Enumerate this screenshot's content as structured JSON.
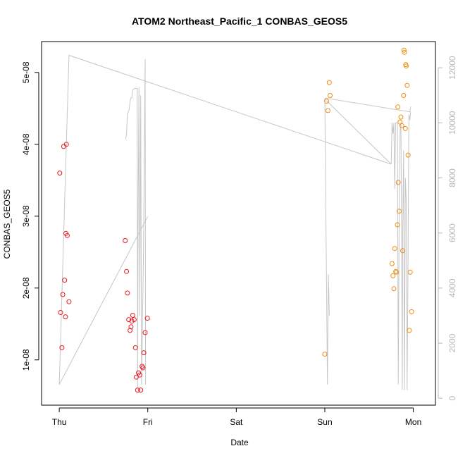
{
  "chart_data": {
    "type": "scatter",
    "title": "ATOM2 Northeast_Pacific_1 CONBAS_GEOS5",
    "xlabel": "Date",
    "ylabel": "CONBAS_GEOS5",
    "x_ticks": [
      {
        "label": "Thu",
        "value": 0
      },
      {
        "label": "Fri",
        "value": 1
      },
      {
        "label": "Sat",
        "value": 2
      },
      {
        "label": "Sun",
        "value": 3
      },
      {
        "label": "Mon",
        "value": 4
      }
    ],
    "y_ticks": [
      {
        "label": "1e-08",
        "value": 1e-08
      },
      {
        "label": "2e-08",
        "value": 2e-08
      },
      {
        "label": "3e-08",
        "value": 3e-08
      },
      {
        "label": "4e-08",
        "value": 4e-08
      },
      {
        "label": "5e-08",
        "value": 5e-08
      }
    ],
    "right_ticks": [
      {
        "label": "0",
        "value": 0
      },
      {
        "label": "2000",
        "value": 2000
      },
      {
        "label": "4000",
        "value": 4000
      },
      {
        "label": "6000",
        "value": 6000
      },
      {
        "label": "8000",
        "value": 8000
      },
      {
        "label": "10000",
        "value": 10000
      },
      {
        "label": "12000",
        "value": 12000
      }
    ],
    "xlim": [
      -0.2,
      4.25
    ],
    "ylim": [
      3.7e-09,
      5.43e-08
    ],
    "right_ylim": [
      -250,
      12950
    ],
    "colors": {
      "series1": "#e8191f",
      "series2": "#f08d12",
      "line": "#c6c6c6",
      "right_axis": "#b8b8b8"
    },
    "series": [
      {
        "color": "red",
        "points": [
          {
            "x": 0.005,
            "y": 3.6e-08
          },
          {
            "x": 0.015,
            "y": 1.66e-08
          },
          {
            "x": 0.03,
            "y": 1.17e-08
          },
          {
            "x": 0.04,
            "y": 1.91e-08
          },
          {
            "x": 0.05,
            "y": 3.97e-08
          },
          {
            "x": 0.06,
            "y": 2.11e-08
          },
          {
            "x": 0.07,
            "y": 1.6e-08
          },
          {
            "x": 0.075,
            "y": 2.76e-08
          },
          {
            "x": 0.08,
            "y": 4e-08
          },
          {
            "x": 0.09,
            "y": 2.73e-08
          },
          {
            "x": 0.11,
            "y": 1.81e-08
          },
          {
            "x": 0.745,
            "y": 2.66e-08
          },
          {
            "x": 0.76,
            "y": 2.23e-08
          },
          {
            "x": 0.77,
            "y": 1.93e-08
          },
          {
            "x": 0.785,
            "y": 1.56e-08
          },
          {
            "x": 0.8,
            "y": 1.41e-08
          },
          {
            "x": 0.81,
            "y": 1.46e-08
          },
          {
            "x": 0.82,
            "y": 1.54e-08
          },
          {
            "x": 0.83,
            "y": 1.62e-08
          },
          {
            "x": 0.845,
            "y": 1.56e-08
          },
          {
            "x": 0.86,
            "y": 1.17e-08
          },
          {
            "x": 0.87,
            "y": 7.6e-09
          },
          {
            "x": 0.885,
            "y": 5.8e-09
          },
          {
            "x": 0.895,
            "y": 8.2e-09
          },
          {
            "x": 0.91,
            "y": 7.9e-09
          },
          {
            "x": 0.92,
            "y": 5.8e-09
          },
          {
            "x": 0.935,
            "y": 9.1e-09
          },
          {
            "x": 0.945,
            "y": 8.9e-09
          },
          {
            "x": 0.955,
            "y": 1.1e-08
          },
          {
            "x": 0.97,
            "y": 1.38e-08
          },
          {
            "x": 0.995,
            "y": 1.58e-08
          }
        ]
      },
      {
        "color": "orange",
        "points": [
          {
            "x": 3.0,
            "y": 1.08e-08
          },
          {
            "x": 3.02,
            "y": 4.6e-08
          },
          {
            "x": 3.035,
            "y": 4.47e-08
          },
          {
            "x": 3.05,
            "y": 4.86e-08
          },
          {
            "x": 3.06,
            "y": 4.68e-08
          },
          {
            "x": 3.76,
            "y": 2.34e-08
          },
          {
            "x": 3.77,
            "y": 2.17e-08
          },
          {
            "x": 3.78,
            "y": 1.99e-08
          },
          {
            "x": 3.79,
            "y": 2.55e-08
          },
          {
            "x": 3.8,
            "y": 2.23e-08
          },
          {
            "x": 3.81,
            "y": 2.22e-08
          },
          {
            "x": 3.82,
            "y": 2.88e-08
          },
          {
            "x": 3.825,
            "y": 4.52e-08
          },
          {
            "x": 3.83,
            "y": 3.47e-08
          },
          {
            "x": 3.84,
            "y": 3.07e-08
          },
          {
            "x": 3.85,
            "y": 4.31e-08
          },
          {
            "x": 3.86,
            "y": 4.38e-08
          },
          {
            "x": 3.87,
            "y": 4.26e-08
          },
          {
            "x": 3.88,
            "y": 2.52e-08
          },
          {
            "x": 3.89,
            "y": 4.68e-08
          },
          {
            "x": 3.895,
            "y": 5.31e-08
          },
          {
            "x": 3.9,
            "y": 5.28e-08
          },
          {
            "x": 3.91,
            "y": 4.22e-08
          },
          {
            "x": 3.915,
            "y": 5.11e-08
          },
          {
            "x": 3.92,
            "y": 5.09e-08
          },
          {
            "x": 3.93,
            "y": 4.82e-08
          },
          {
            "x": 3.94,
            "y": 3.85e-08
          },
          {
            "x": 3.955,
            "y": 1.41e-08
          },
          {
            "x": 3.965,
            "y": 2.22e-08
          },
          {
            "x": 3.98,
            "y": 1.67e-08
          }
        ]
      }
    ],
    "right_series": {
      "name": "altitude",
      "points": [
        [
          0.0,
          500
        ],
        [
          0.02,
          9500
        ],
        [
          0.03,
          12600
        ],
        [
          0.04,
          9000
        ],
        [
          0.05,
          1500
        ],
        [
          0.06,
          300
        ],
        [
          0.065,
          5000
        ],
        [
          0.07,
          9600
        ],
        [
          0.08,
          5000
        ],
        [
          0.085,
          300
        ],
        [
          0.09,
          4000
        ],
        [
          0.1,
          9800
        ],
        [
          0.11,
          12400
        ],
        [
          0.105,
          12450
        ],
        [
          0.115,
          12450
        ],
        [
          3.75,
          8600
        ],
        [
          3.76,
          10000
        ],
        [
          3.77,
          9600
        ],
        [
          3.78,
          10000
        ],
        [
          3.79,
          7600
        ],
        [
          3.8,
          10000
        ],
        [
          3.81,
          10000
        ],
        [
          3.82,
          6600
        ],
        [
          3.83,
          500
        ],
        [
          3.84,
          6400
        ],
        [
          3.85,
          9700
        ],
        [
          3.86,
          10000
        ],
        [
          3.87,
          4000
        ],
        [
          3.875,
          300
        ],
        [
          3.88,
          6000
        ],
        [
          3.89,
          9000
        ],
        [
          3.9,
          300
        ],
        [
          3.91,
          8000
        ],
        [
          3.92,
          7200
        ],
        [
          3.93,
          300
        ],
        [
          3.94,
          5000
        ],
        [
          3.95,
          10300
        ],
        [
          3.96,
          10100
        ],
        [
          3.97,
          10400
        ],
        [
          3.97,
          10600
        ]
      ],
      "segments": [
        [
          [
            0.0,
            500
          ],
          [
            0.11,
            12450
          ],
          [
            3.75,
            8500
          ]
        ],
        [
          [
            0.75,
            9400
          ],
          [
            0.76,
            9600
          ],
          [
            0.77,
            10300
          ],
          [
            0.79,
            10500
          ],
          [
            0.8,
            10800
          ],
          [
            0.81,
            10900
          ],
          [
            0.82,
            10900
          ],
          [
            0.83,
            11200
          ],
          [
            0.85,
            11250
          ],
          [
            0.87,
            11250
          ],
          [
            0.88,
            11250
          ],
          [
            0.885,
            300
          ],
          [
            0.89,
            6000
          ],
          [
            0.9,
            11300
          ],
          [
            0.91,
            3000
          ],
          [
            0.92,
            11000
          ],
          [
            0.93,
            500
          ],
          [
            0.95,
            5000
          ],
          [
            0.97,
            12300
          ],
          [
            0.975,
            500
          ]
        ],
        [
          [
            0.0,
            500
          ],
          [
            1.0,
            6600
          ]
        ],
        [
          [
            3.0,
            10900
          ],
          [
            3.03,
            500
          ],
          [
            3.04,
            4500
          ],
          [
            3.05,
            3000
          ],
          [
            3.045,
            4000
          ]
        ],
        [
          [
            3.0,
            10900
          ],
          [
            3.96,
            10400
          ],
          [
            3.97,
            10600
          ]
        ],
        [
          [
            3.02,
            10800
          ],
          [
            3.75,
            8500
          ]
        ],
        [
          [
            3.75,
            8500
          ],
          [
            3.76,
            10000
          ],
          [
            3.77,
            9600
          ],
          [
            3.78,
            10000
          ],
          [
            3.79,
            7600
          ],
          [
            3.8,
            10000
          ],
          [
            3.82,
            10000
          ],
          [
            3.83,
            500
          ],
          [
            3.84,
            6400
          ],
          [
            3.85,
            9700
          ],
          [
            3.86,
            10000
          ],
          [
            3.87,
            4000
          ],
          [
            3.875,
            300
          ],
          [
            3.88,
            6000
          ],
          [
            3.89,
            9000
          ],
          [
            3.9,
            300
          ],
          [
            3.91,
            8000
          ],
          [
            3.92,
            7200
          ],
          [
            3.93,
            300
          ],
          [
            3.94,
            5000
          ],
          [
            3.95,
            10300
          ],
          [
            3.96,
            10100
          ],
          [
            3.97,
            10400
          ]
        ]
      ]
    }
  }
}
